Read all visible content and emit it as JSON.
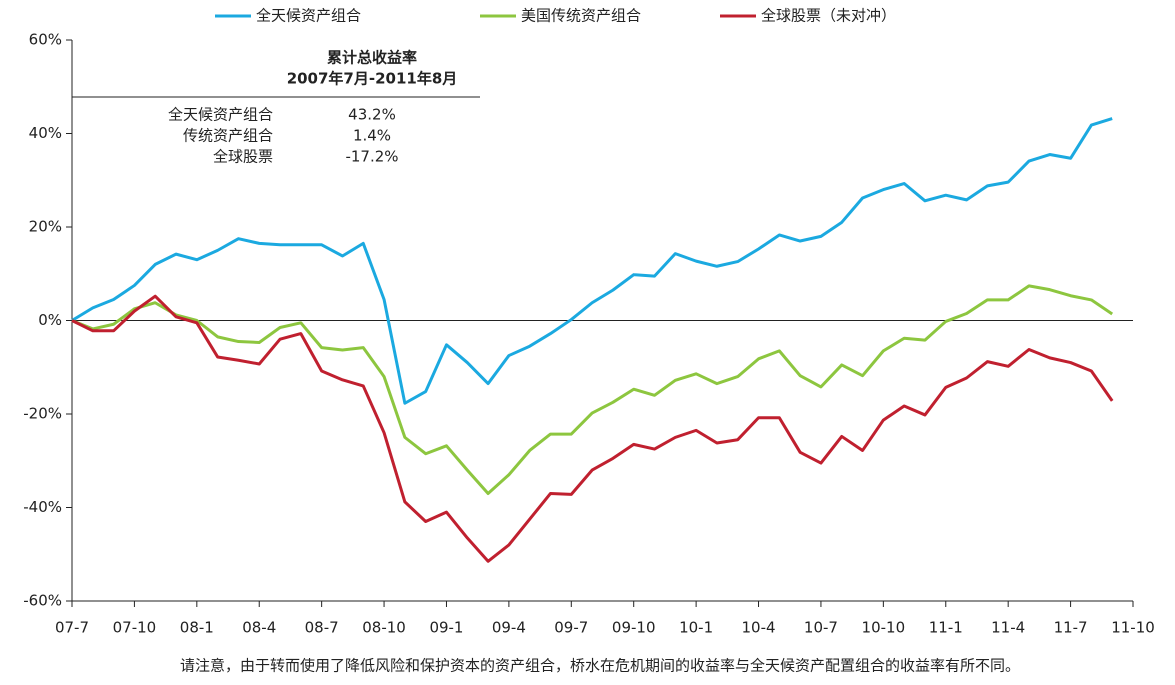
{
  "chart_data": {
    "type": "line",
    "categories": [
      "07-7",
      null,
      null,
      "07-10",
      null,
      null,
      "08-1",
      null,
      null,
      "08-4",
      null,
      null,
      "08-7",
      null,
      null,
      "08-10",
      null,
      null,
      "09-1",
      null,
      null,
      "09-4",
      null,
      null,
      "09-7",
      null,
      null,
      "09-10",
      null,
      null,
      "10-1",
      null,
      null,
      "10-4",
      null,
      null,
      "10-7",
      null,
      null,
      "10-10",
      null,
      null,
      "11-1",
      null,
      null,
      "11-4",
      null,
      null,
      "11-7",
      null,
      null,
      "11-10"
    ],
    "series": [
      {
        "name": "全天候资产组合",
        "color": "#1ba9e0",
        "values": [
          0,
          2.7,
          4.5,
          7.5,
          12,
          14.2,
          13,
          15,
          17.5,
          16.5,
          16.2,
          16.2,
          16.2,
          13.8,
          16.5,
          4.5,
          -17.7,
          -15.2,
          -5.2,
          -9,
          -13.5,
          -7.5,
          -5.5,
          -2.8,
          0.2,
          3.8,
          6.5,
          9.8,
          9.5,
          14.3,
          12.7,
          11.6,
          12.6,
          15.3,
          18.3,
          17,
          18,
          21,
          26.2,
          28,
          29.3,
          25.6,
          26.8,
          25.8,
          28.8,
          29.6,
          34.1,
          35.5,
          34.7,
          41.8,
          43.2,
          null
        ]
      },
      {
        "name": "美国传统资产组合",
        "color": "#8dc63f",
        "values": [
          0,
          -1.8,
          -0.8,
          2.5,
          3.8,
          1.2,
          0,
          -3.5,
          -4.5,
          -4.7,
          -1.5,
          -0.5,
          -5.8,
          -6.3,
          -5.8,
          -12,
          -25,
          -28.5,
          -26.8,
          -32,
          -37,
          -33,
          -27.8,
          -24.3,
          -24.3,
          -19.8,
          -17.5,
          -14.7,
          -16,
          -12.8,
          -11.4,
          -13.5,
          -12,
          -8.2,
          -6.5,
          -11.8,
          -14.2,
          -9.5,
          -11.8,
          -6.5,
          -3.8,
          -4.2,
          -0.2,
          1.5,
          4.4,
          4.4,
          7.4,
          6.6,
          5.3,
          4.4,
          1.4,
          null
        ]
      },
      {
        "name": "全球股票（未对冲）",
        "color": "#c0202f",
        "values": [
          0,
          -2.2,
          -2.2,
          2,
          5.2,
          0.8,
          -0.5,
          -7.8,
          -8.5,
          -9.3,
          -4,
          -2.8,
          -10.8,
          -12.7,
          -14,
          -24,
          -38.8,
          -43,
          -41,
          -46.5,
          -51.5,
          -48,
          -42.5,
          -37,
          -37.2,
          -32,
          -29.5,
          -26.5,
          -27.5,
          -25,
          -23.5,
          -26.2,
          -25.5,
          -20.8,
          -20.8,
          -28.2,
          -30.5,
          -24.8,
          -27.8,
          -21.3,
          -18.3,
          -20.2,
          -14.3,
          -12.3,
          -8.8,
          -9.8,
          -6.2,
          -8,
          -9,
          -10.8,
          -17.2,
          null
        ]
      }
    ],
    "ylim": [
      -60,
      60
    ],
    "yticks": [
      {
        "value": -60,
        "label": "-60%"
      },
      {
        "value": -40,
        "label": "-40%"
      },
      {
        "value": -20,
        "label": "-20%"
      },
      {
        "value": 0,
        "label": "0%"
      },
      {
        "value": 20,
        "label": "20%"
      },
      {
        "value": 40,
        "label": "40%"
      },
      {
        "value": 60,
        "label": "60%"
      }
    ],
    "legend": "top",
    "summary": {
      "title": "累计总收益率",
      "period": "2007年7月-2011年8月",
      "rows": [
        [
          "全天候资产组合",
          "43.2%"
        ],
        [
          "传统资产组合",
          "1.4%"
        ],
        [
          "全球股票",
          "-17.2%"
        ]
      ]
    },
    "note": "请注意，由于转而使用了降低风险和保护资本的资产组合，桥水在危机期间的收益率与全天候资产配置组合的收益率有所不同。"
  }
}
